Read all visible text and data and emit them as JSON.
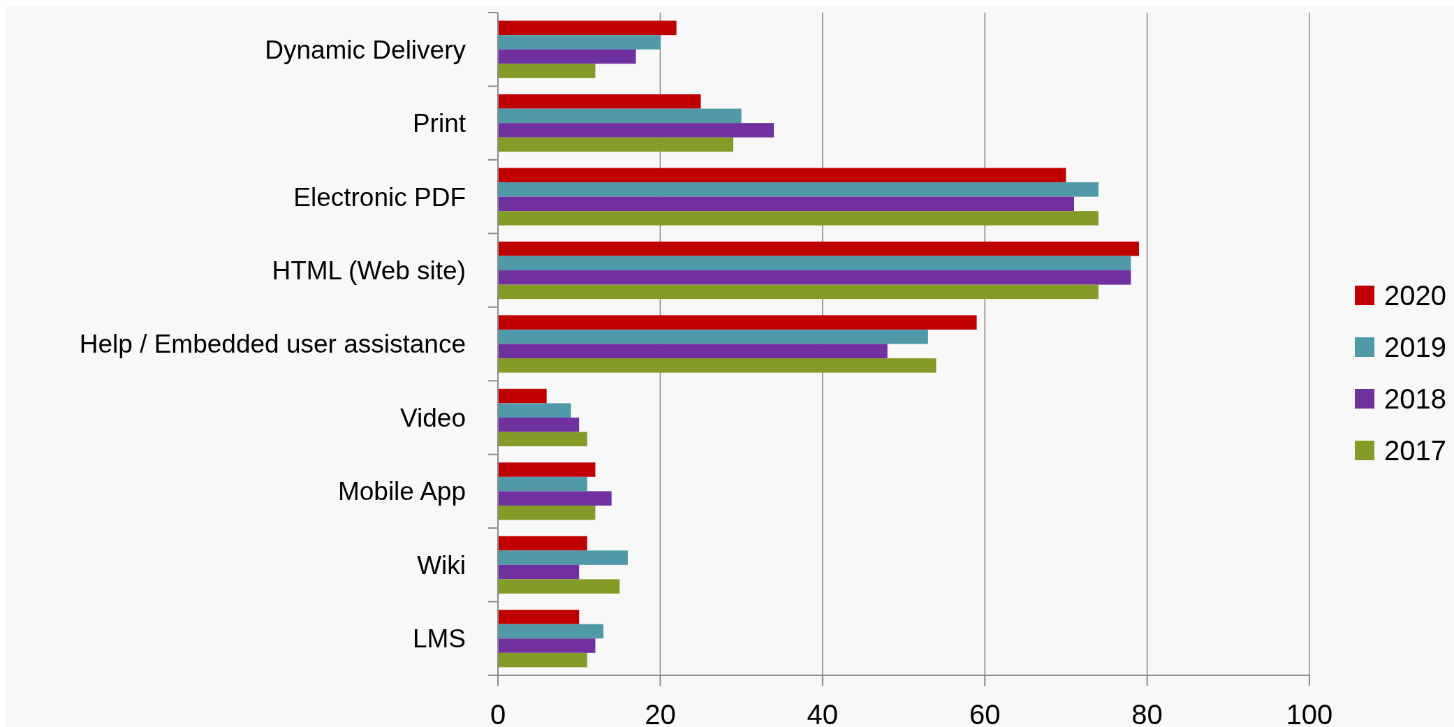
{
  "chart_data": {
    "type": "bar",
    "orientation": "horizontal",
    "categories": [
      "Dynamic Delivery",
      "Print",
      "Electronic PDF",
      "HTML (Web site)",
      "Help / Embedded user assistance",
      "Video",
      "Mobile App",
      "Wiki",
      "LMS"
    ],
    "series": [
      {
        "name": "2020",
        "color": "#c00000",
        "values": [
          22,
          25,
          70,
          79,
          59,
          6,
          12,
          11,
          10
        ]
      },
      {
        "name": "2019",
        "color": "#4f99a8",
        "values": [
          20,
          30,
          74,
          78,
          53,
          9,
          11,
          16,
          13
        ]
      },
      {
        "name": "2018",
        "color": "#7030a0",
        "values": [
          17,
          34,
          71,
          78,
          48,
          10,
          14,
          10,
          12
        ]
      },
      {
        "name": "2017",
        "color": "#849b28",
        "values": [
          12,
          29,
          74,
          74,
          54,
          11,
          12,
          15,
          11
        ]
      }
    ],
    "xlim": [
      0,
      100
    ],
    "xticks": [
      0,
      20,
      40,
      60,
      80,
      100
    ],
    "grid": "x",
    "legend": "right"
  }
}
